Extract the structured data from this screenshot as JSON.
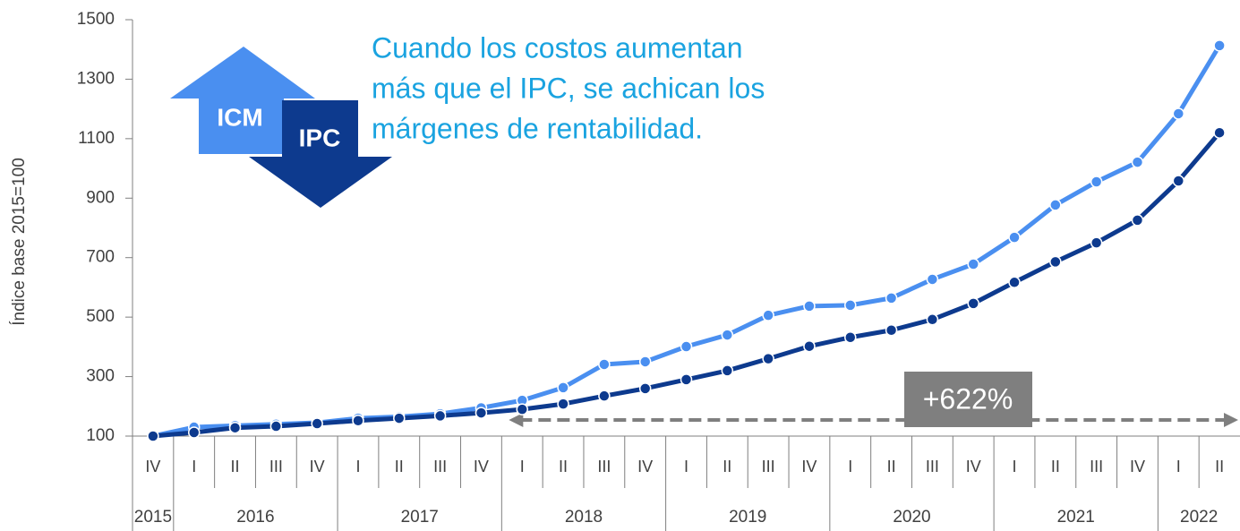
{
  "chart_data": {
    "type": "line",
    "y_label": "Índice base 2015=100",
    "annotation": [
      "Cuando los costos aumentan",
      "más que el IPC, se achican los",
      "márgenes de rentabilidad."
    ],
    "callout": "+622%",
    "categories": [
      "IV",
      "I",
      "II",
      "III",
      "IV",
      "I",
      "II",
      "III",
      "IV",
      "I",
      "II",
      "III",
      "IV",
      "I",
      "II",
      "III",
      "IV",
      "I",
      "II",
      "III",
      "IV",
      "I",
      "II",
      "III",
      "IV",
      "I",
      "II"
    ],
    "category_groups": [
      "2015",
      "2016",
      "2017",
      "2018",
      "2019",
      "2020",
      "2021",
      "2022"
    ],
    "series": [
      {
        "name": "ICM",
        "color": "#4a8ff0",
        "values": [
          100,
          130,
          135,
          140,
          145,
          160,
          165,
          175,
          195,
          220,
          263,
          341,
          350,
          401,
          440,
          506,
          537,
          540,
          564,
          627,
          678,
          768,
          877,
          955,
          1021,
          1184,
          1413
        ]
      },
      {
        "name": "IPC",
        "color": "#0d3a8e",
        "values": [
          100,
          112,
          128,
          133,
          142,
          152,
          160,
          168,
          178,
          190,
          208,
          235,
          260,
          290,
          320,
          360,
          402,
          432,
          456,
          492,
          546,
          617,
          686,
          750,
          826,
          958,
          1120
        ]
      }
    ],
    "ylim": [
      100,
      1500
    ],
    "yticks": [
      100,
      300,
      500,
      700,
      900,
      1100,
      1300,
      1500
    ]
  }
}
